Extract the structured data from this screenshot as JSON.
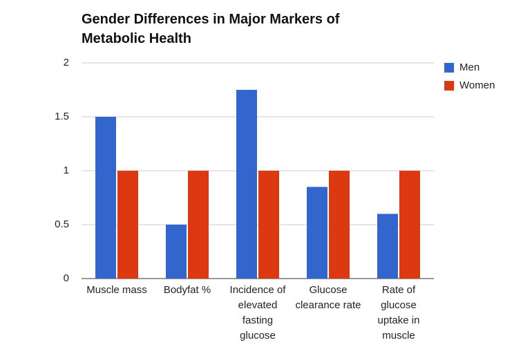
{
  "chart_data": {
    "type": "bar",
    "title": "Gender Differences in Major Markers of Metabolic Health",
    "categories": [
      "Muscle mass",
      "Bodyfat %",
      "Incidence of elevated fasting glucose",
      "Glucose clearance rate",
      "Rate of glucose uptake in muscle"
    ],
    "series": [
      {
        "name": "Men",
        "color": "#3366cc",
        "values": [
          1.5,
          0.5,
          1.75,
          0.85,
          0.6
        ]
      },
      {
        "name": "Women",
        "color": "#dc3912",
        "values": [
          1,
          1,
          1,
          1,
          1
        ]
      }
    ],
    "ylim": [
      0,
      2
    ],
    "yticks": [
      0,
      0.5,
      1,
      1.5,
      2
    ],
    "grid": true,
    "legend": "right"
  }
}
